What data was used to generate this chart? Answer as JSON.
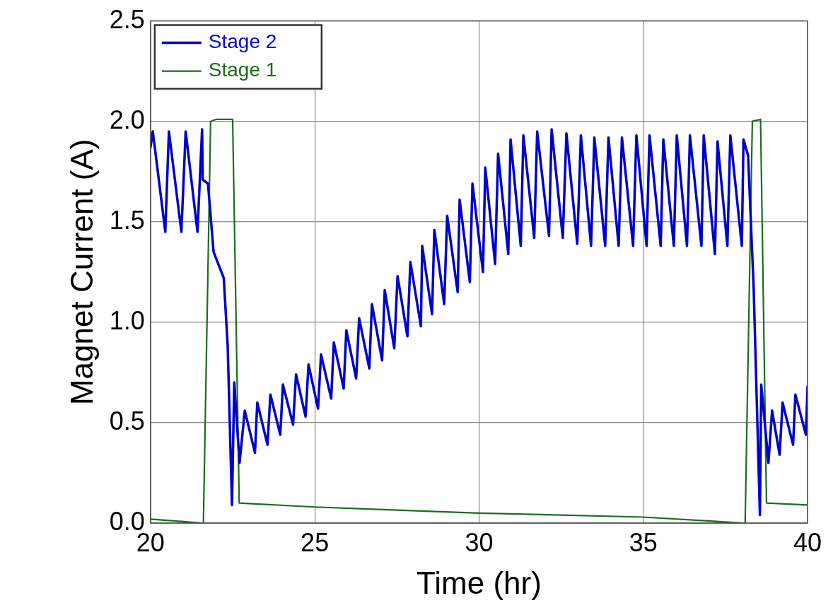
{
  "chart_data": {
    "type": "line",
    "xlabel": "Time (hr)",
    "ylabel": "Magnet Current (A)",
    "xlim": [
      20,
      40
    ],
    "xticks": [
      20,
      25,
      30,
      35,
      40
    ],
    "ylim": [
      0,
      2.5
    ],
    "yticks": [
      {
        "value": 0,
        "label": "0.0"
      },
      {
        "value": 0.5,
        "label": "0.5"
      },
      {
        "value": 1,
        "label": "1.0"
      },
      {
        "value": 1.5,
        "label": "1.5"
      },
      {
        "value": 2,
        "label": "2.0"
      },
      {
        "value": 2.5,
        "label": "2.5"
      }
    ],
    "grid": true,
    "legend": "top left",
    "marker": "none",
    "line_style": "solid",
    "series": [
      {
        "name": "Stage 2",
        "color": "#0000cc",
        "x": [
          20,
          20.07,
          20.45,
          20.56,
          20.94,
          21.07,
          21.43,
          21.57,
          21.59,
          21.75,
          21.92,
          22.23,
          22.35,
          22.48,
          22.55,
          22.71,
          22.87,
          23.18,
          23.25,
          23.56,
          23.65,
          23.95,
          24.03,
          24.34,
          24.43,
          24.72,
          24.81,
          25.1,
          25.19,
          25.5,
          25.58,
          25.88,
          25.96,
          26.26,
          26.35,
          26.66,
          26.74,
          27.05,
          27.13,
          27.42,
          27.52,
          27.82,
          27.91,
          28.23,
          28.27,
          28.57,
          28.64,
          28.94,
          29.03,
          29.35,
          29.41,
          29.72,
          29.8,
          30.12,
          30.19,
          30.49,
          30.58,
          30.89,
          30.96,
          31.27,
          31.35,
          31.68,
          31.77,
          32.13,
          32.21,
          32.55,
          32.66,
          32.99,
          33.1,
          33.41,
          33.51,
          33.84,
          33.94,
          34.25,
          34.35,
          34.69,
          34.79,
          35.1,
          35.19,
          35.53,
          35.61,
          35.93,
          36.02,
          36.33,
          36.42,
          36.77,
          36.84,
          37.18,
          37.26,
          37.56,
          37.65,
          38.0,
          38.05,
          38.19,
          38.36,
          38.55,
          38.59,
          38.81,
          38.92,
          39.15,
          39.24,
          39.56,
          39.63,
          39.95,
          40
        ],
        "values": [
          1.87,
          1.95,
          1.45,
          1.95,
          1.45,
          1.95,
          1.45,
          1.96,
          1.71,
          1.69,
          1.35,
          1.22,
          0.88,
          0.09,
          0.7,
          0.3,
          0.56,
          0.35,
          0.6,
          0.39,
          0.64,
          0.44,
          0.69,
          0.49,
          0.74,
          0.53,
          0.79,
          0.57,
          0.84,
          0.62,
          0.9,
          0.67,
          0.96,
          0.72,
          1.02,
          0.77,
          1.09,
          0.81,
          1.16,
          0.87,
          1.23,
          0.93,
          1.3,
          0.98,
          1.38,
          1.04,
          1.46,
          1.09,
          1.53,
          1.15,
          1.61,
          1.2,
          1.69,
          1.25,
          1.77,
          1.29,
          1.84,
          1.34,
          1.91,
          1.38,
          1.93,
          1.42,
          1.95,
          1.43,
          1.96,
          1.42,
          1.94,
          1.39,
          1.93,
          1.38,
          1.92,
          1.38,
          1.92,
          1.38,
          1.92,
          1.38,
          1.93,
          1.38,
          1.93,
          1.38,
          1.91,
          1.38,
          1.93,
          1.38,
          1.93,
          1.38,
          1.93,
          1.34,
          1.9,
          1.38,
          1.93,
          1.38,
          1.91,
          1.83,
          1.17,
          0.04,
          0.69,
          0.3,
          0.56,
          0.34,
          0.6,
          0.39,
          0.64,
          0.44,
          0.68
        ]
      },
      {
        "name": "Stage 1",
        "color": "#1a6e1a",
        "x": [
          20,
          21.61,
          21.83,
          22.0,
          22.5,
          22.7,
          25,
          30,
          35,
          38.1,
          38.32,
          38.57,
          38.75,
          40
        ],
        "values": [
          0.02,
          0.0,
          2.0,
          2.01,
          2.01,
          0.1,
          0.08,
          0.05,
          0.03,
          0.0,
          2.0,
          2.01,
          0.1,
          0.09
        ]
      }
    ]
  }
}
